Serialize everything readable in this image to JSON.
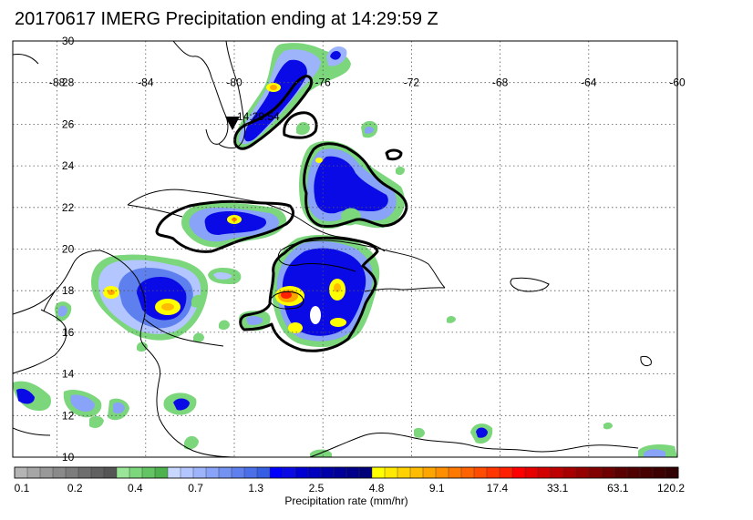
{
  "title": "20170617 IMERG Precipitation ending at 14:29:59 Z",
  "map": {
    "lon_range": [
      -90,
      -60
    ],
    "lat_range": [
      10,
      30
    ],
    "lon_ticks": [
      "-88",
      "-84",
      "-80",
      "-76",
      "-72",
      "-68",
      "-64",
      "-60"
    ],
    "lat_ticks": [
      "30",
      "28",
      "26",
      "24",
      "22",
      "20",
      "18",
      "16",
      "14",
      "12",
      "10"
    ],
    "track_time_label": "14:29:54",
    "grid": "dotted"
  },
  "colorbar": {
    "title": "Precipitation rate (mm/hr)",
    "tick_labels": [
      "0.1",
      "0.2",
      "0.4",
      "0.7",
      "1.3",
      "2.5",
      "4.8",
      "9.1",
      "17.4",
      "33.1",
      "63.1",
      "120.2"
    ],
    "colors": [
      "#b4b4b4",
      "#a6a6a6",
      "#989898",
      "#8a8a8a",
      "#7c7c7c",
      "#6e6e6e",
      "#606060",
      "#555555",
      "#99e699",
      "#7cd67c",
      "#62c462",
      "#4db24d",
      "#c8d7ff",
      "#b3c6ff",
      "#9db4fb",
      "#88a3f7",
      "#7392f2",
      "#5e80ee",
      "#4a6fe9",
      "#355ee4",
      "#0000ff",
      "#0a0ae6",
      "#0000d2",
      "#0000be",
      "#0000a8",
      "#000098",
      "#00008a",
      "#00007a",
      "#ffff00",
      "#ffe900",
      "#ffd200",
      "#ffbc00",
      "#ffa500",
      "#ff8e00",
      "#ff7800",
      "#ff6200",
      "#ff4c00",
      "#ff3600",
      "#ff2000",
      "#ff0000",
      "#e60000",
      "#d20000",
      "#be0000",
      "#a80000",
      "#960000",
      "#820000",
      "#6e0000",
      "#5a0000",
      "#500000",
      "#460000",
      "#3c0000",
      "#320000"
    ]
  }
}
